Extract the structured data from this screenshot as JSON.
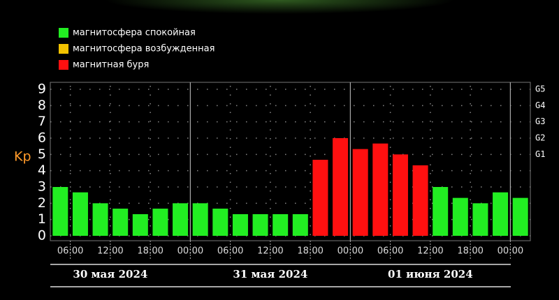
{
  "chart_data": {
    "type": "bar",
    "y_label": "Kp",
    "legend": [
      {
        "name": "магнитосфера спокойная",
        "color": "#22ee22"
      },
      {
        "name": "магнитосфера возбужденная",
        "color": "#f2c200"
      },
      {
        "name": "магнитная буря",
        "color": "#ff1010"
      }
    ],
    "x": [
      3,
      6,
      9,
      12,
      15,
      18,
      21,
      24,
      27,
      30,
      33,
      36,
      39,
      42,
      45,
      48,
      51,
      54,
      57,
      60,
      63,
      66,
      69,
      72
    ],
    "values": [
      3.0,
      2.67,
      2.0,
      1.67,
      1.33,
      1.67,
      2.0,
      2.0,
      1.67,
      1.33,
      1.33,
      1.33,
      1.33,
      4.67,
      6.0,
      5.33,
      5.67,
      5.0,
      4.33,
      3.0,
      2.33,
      2.0,
      2.67,
      2.33
    ],
    "bar_colors": [
      "#22ee22",
      "#22ee22",
      "#22ee22",
      "#22ee22",
      "#22ee22",
      "#22ee22",
      "#22ee22",
      "#22ee22",
      "#22ee22",
      "#22ee22",
      "#22ee22",
      "#22ee22",
      "#22ee22",
      "#ff1010",
      "#ff1010",
      "#ff1010",
      "#ff1010",
      "#ff1010",
      "#ff1010",
      "#22ee22",
      "#22ee22",
      "#22ee22",
      "#22ee22",
      "#22ee22"
    ],
    "xlim": [
      3,
      75
    ],
    "xticks": [
      {
        "value": 6,
        "label": "06:00"
      },
      {
        "value": 12,
        "label": "12:00"
      },
      {
        "value": 18,
        "label": "18:00"
      },
      {
        "value": 24,
        "label": "00:00"
      },
      {
        "value": 30,
        "label": "06:00"
      },
      {
        "value": 36,
        "label": "12:00"
      },
      {
        "value": 42,
        "label": "18:00"
      },
      {
        "value": 48,
        "label": "00:00"
      },
      {
        "value": 54,
        "label": "06:00"
      },
      {
        "value": 60,
        "label": "12:00"
      },
      {
        "value": 66,
        "label": "18:00"
      },
      {
        "value": 72,
        "label": "00:00"
      }
    ],
    "ylim": [
      0,
      9
    ],
    "yticks": [
      0,
      1,
      2,
      3,
      4,
      5,
      6,
      7,
      8,
      9
    ],
    "y2lim": [
      0,
      9
    ],
    "y2ticks": [
      {
        "value": 5,
        "label": "G1"
      },
      {
        "value": 6,
        "label": "G2"
      },
      {
        "value": 7,
        "label": "G3"
      },
      {
        "value": 8,
        "label": "G4"
      },
      {
        "value": 9,
        "label": "G5"
      }
    ],
    "days": [
      "30 мая 2024",
      "31 мая 2024",
      "01 июня 2024"
    ],
    "grid": true
  }
}
